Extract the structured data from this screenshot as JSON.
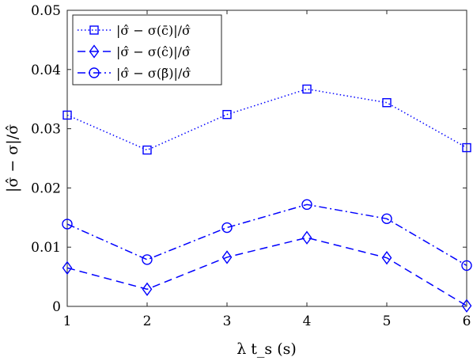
{
  "chart_data": {
    "type": "line",
    "xlabel": "λ t_s (s)",
    "ylabel": "|σ̂ − σ|/σ̂",
    "x": [
      1,
      2,
      3,
      4,
      5,
      6
    ],
    "xlim": [
      1,
      6
    ],
    "ylim": [
      0,
      0.05
    ],
    "xticks": [
      "1",
      "2",
      "3",
      "4",
      "5",
      "6"
    ],
    "yticks": [
      "0",
      "0.01",
      "0.02",
      "0.03",
      "0.04",
      "0.05"
    ],
    "grid": false,
    "legend_position": "top-left",
    "series": [
      {
        "name": "|σ̂ − σ(c̄)|/σ̂",
        "marker": "square",
        "line_style": "dotted",
        "color": "#0000ff",
        "values": [
          0.0323,
          0.0264,
          0.0324,
          0.0367,
          0.0344,
          0.0268
        ]
      },
      {
        "name": "|σ̂ − σ(ĉ)|/σ̂",
        "marker": "diamond",
        "line_style": "dashed",
        "color": "#0000ff",
        "values": [
          0.0065,
          0.0029,
          0.0083,
          0.0116,
          0.0082,
          0.0001
        ]
      },
      {
        "name": "|σ̂ − σ(β̃)|/σ̂",
        "marker": "circle",
        "line_style": "dash-dot",
        "color": "#0000ff",
        "values": [
          0.0139,
          0.0079,
          0.0133,
          0.0172,
          0.0148,
          0.0069
        ]
      }
    ]
  }
}
